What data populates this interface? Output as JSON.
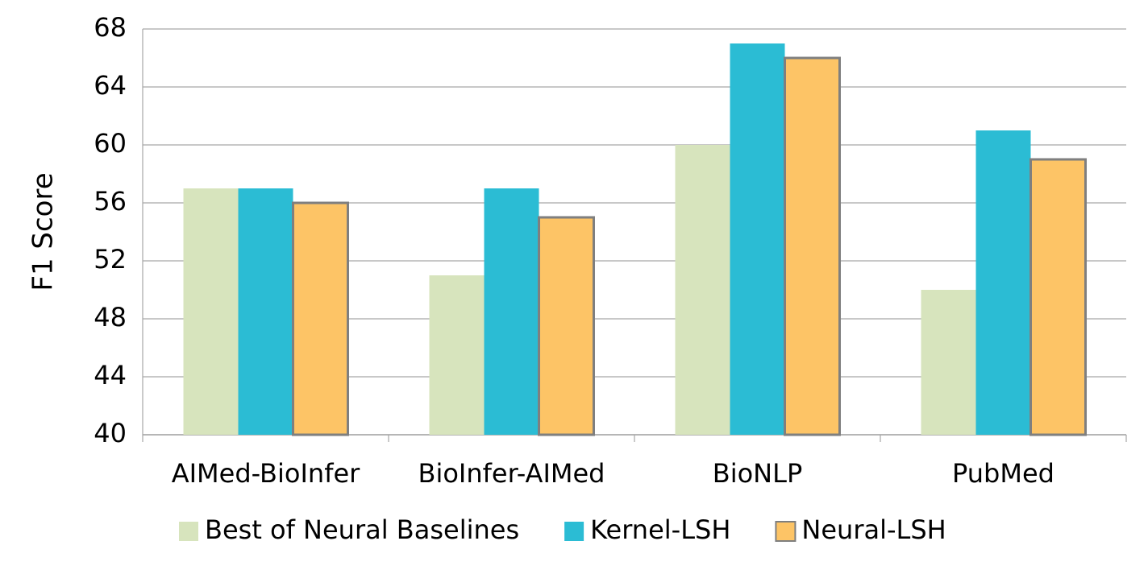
{
  "chart_data": {
    "type": "bar",
    "y_label": "F1 Score",
    "categories": [
      "AIMed-BioInfer",
      "BioInfer-AIMed",
      "BioNLP",
      "PubMed"
    ],
    "series": [
      {
        "name": "Best of Neural Baselines",
        "color": "#d7e4bd",
        "values": [
          57,
          51,
          60,
          50
        ]
      },
      {
        "name": "Kernel-LSH",
        "color": "#2bbcd4",
        "values": [
          57,
          57,
          67,
          61
        ]
      },
      {
        "name": "Neural-LSH",
        "color": "#fdc466",
        "edge_color": "#7f7f7f",
        "values": [
          56,
          55,
          66,
          59
        ]
      }
    ],
    "ylim": [
      40,
      68
    ],
    "yticks": [
      40,
      44,
      48,
      52,
      56,
      60,
      64,
      68
    ],
    "grid": true,
    "legend": "bottom"
  }
}
